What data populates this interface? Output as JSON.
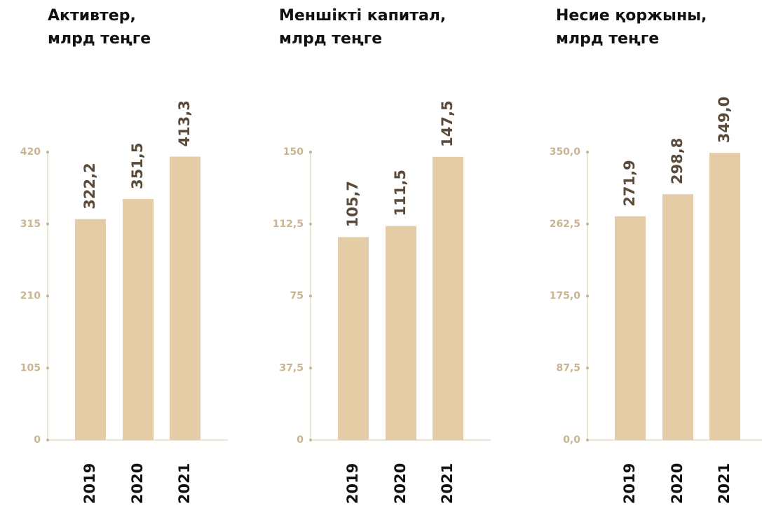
{
  "chart_data": [
    {
      "type": "bar",
      "title": "Активтер,\nмлрд теңге",
      "categories": [
        "2019",
        "2020",
        "2021"
      ],
      "values": [
        322.2,
        351.5,
        413.3
      ],
      "value_labels": [
        "322,2",
        "351,5",
        "413,3"
      ],
      "color": "#e4cda6",
      "ylim": [
        0,
        420
      ],
      "yticks": [
        0,
        105,
        210,
        315,
        420
      ]
    },
    {
      "type": "bar",
      "title": "Меншікті капитал,\nмлрд теңге",
      "categories": [
        "2019",
        "2020",
        "2021"
      ],
      "values": [
        105.7,
        111.5,
        147.5
      ],
      "value_labels": [
        "105,7",
        "111,5",
        "147,5"
      ],
      "color": "#e4cda6",
      "ylim": [
        0,
        150
      ],
      "yticks": [
        0,
        {
          "value": 37.5,
          "label": "37,5"
        },
        75,
        {
          "value": 112.5,
          "label": "112,5"
        },
        150
      ]
    },
    {
      "type": "bar",
      "title": "Несие қоржыны,\nмлрд теңге",
      "categories": [
        "2019",
        "2020",
        "2021"
      ],
      "values": [
        271.9,
        298.8,
        349.0
      ],
      "value_labels": [
        "271,9",
        "298,8",
        "349,0"
      ],
      "color": "#e4cda6",
      "ylim": [
        0,
        350
      ],
      "yticks": [
        {
          "value": 0,
          "label": "0,0"
        },
        {
          "value": 87.5,
          "label": "87,5"
        },
        {
          "value": 175,
          "label": "175,0"
        },
        {
          "value": 262.5,
          "label": "262,5"
        },
        {
          "value": 350,
          "label": "350,0"
        }
      ]
    }
  ]
}
